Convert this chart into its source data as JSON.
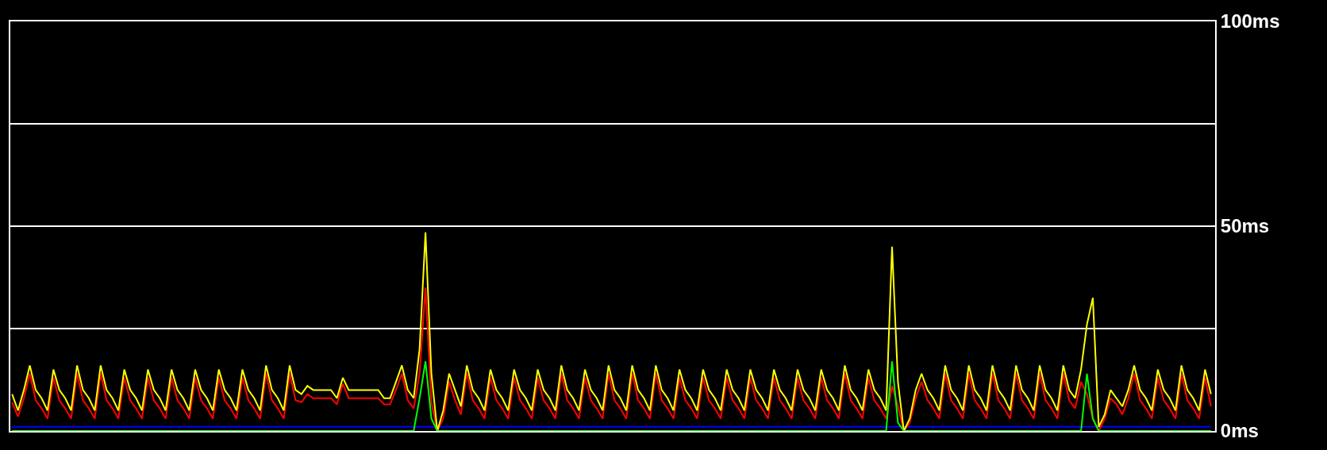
{
  "chart_data": {
    "type": "line",
    "categories": [
      null,
      null,
      null,
      null,
      null,
      null,
      null,
      null,
      null,
      null,
      null,
      null,
      null,
      null,
      null,
      null,
      null,
      null,
      null,
      null,
      null,
      null,
      null,
      null,
      null,
      null,
      null,
      null,
      null,
      null,
      null,
      null,
      null,
      null,
      null,
      null,
      null,
      null,
      null,
      null,
      null,
      null,
      null,
      null,
      null,
      null,
      null,
      null,
      null,
      null,
      null,
      null,
      null,
      null,
      null,
      null,
      null,
      null,
      null,
      null,
      null,
      null,
      null,
      null,
      null,
      null,
      null,
      null,
      null,
      null,
      null,
      null,
      null,
      null,
      null,
      null,
      null,
      null,
      null,
      null,
      null,
      null,
      null,
      null,
      null,
      null,
      null,
      null,
      null,
      null,
      null,
      null,
      null,
      null,
      null,
      null,
      null,
      null,
      null,
      null,
      null,
      null,
      null,
      null,
      null,
      null,
      null,
      null,
      null,
      null,
      null,
      null,
      null,
      null,
      null,
      null,
      null,
      null,
      null,
      null,
      null,
      null,
      null,
      null,
      null,
      null,
      null,
      null,
      null,
      null,
      null,
      null,
      null,
      null,
      null,
      null,
      null,
      null,
      null,
      null,
      null,
      null,
      null,
      null,
      null,
      null,
      null,
      null,
      null,
      null,
      null,
      null,
      null,
      null,
      null,
      null,
      null,
      null,
      null,
      null,
      null,
      null,
      null,
      null,
      null,
      null,
      null,
      null,
      null,
      null,
      null,
      null,
      null,
      null,
      null,
      null,
      null,
      null,
      null,
      null,
      null,
      null,
      null,
      null,
      null,
      null,
      null,
      null,
      null,
      null,
      null,
      null,
      null,
      null,
      null,
      null,
      null,
      null,
      null,
      null,
      null,
      null,
      null,
      null
    ],
    "series": [
      {
        "color": "#0000ff",
        "values": [
          1,
          1,
          1,
          1,
          1,
          1,
          1,
          1,
          1,
          1,
          1,
          1,
          1,
          1,
          1,
          1,
          1,
          1,
          1,
          1,
          1,
          1,
          1,
          1,
          1,
          1,
          1,
          1,
          1,
          1,
          1,
          1,
          1,
          1,
          1,
          1,
          1,
          1,
          1,
          1,
          1,
          1,
          1,
          1,
          1,
          1,
          1,
          1,
          1,
          1,
          1,
          1,
          1,
          1,
          1,
          1,
          1,
          1,
          1,
          1,
          1,
          1,
          1,
          1,
          1,
          1,
          1,
          1,
          1,
          1,
          1,
          1,
          1,
          1,
          1,
          1,
          1,
          1,
          1,
          1,
          1,
          1,
          1,
          1,
          1,
          1,
          1,
          1,
          1,
          1,
          1,
          1,
          1,
          1,
          1,
          1,
          1,
          1,
          1,
          1,
          1,
          1,
          1,
          1,
          1,
          1,
          1,
          1,
          1,
          1,
          1,
          1,
          1,
          1,
          1,
          1,
          1,
          1,
          1,
          1,
          1,
          1,
          1,
          1,
          1,
          1,
          1,
          1,
          1,
          1,
          1,
          1,
          1,
          1,
          1,
          1,
          1,
          1,
          1,
          1,
          1,
          1,
          1,
          1,
          1,
          1,
          1,
          1,
          1,
          1,
          1,
          1,
          1,
          1,
          1,
          1,
          1,
          1,
          1,
          1,
          1,
          1,
          1,
          1,
          1,
          1,
          1,
          1,
          1,
          1,
          1,
          1,
          1,
          1,
          1,
          1,
          1,
          1,
          1,
          1,
          1,
          1,
          1,
          1,
          1,
          1,
          1,
          1,
          1,
          1,
          1,
          1,
          1,
          1,
          1,
          1,
          1,
          1,
          1,
          1,
          1,
          1,
          1,
          1
        ]
      },
      {
        "color": "#ff0000",
        "values": [
          7,
          3.5,
          8,
          14,
          7.5,
          5.5,
          3,
          13,
          7.5,
          5.5,
          3,
          14,
          7.5,
          5.5,
          3,
          14,
          7.5,
          5.5,
          3,
          13,
          7.5,
          5.5,
          3,
          13,
          7.5,
          5.5,
          3,
          13,
          7.5,
          5.5,
          3,
          13,
          7.5,
          5.5,
          3,
          13,
          7.5,
          5.5,
          3,
          13,
          7.5,
          5.5,
          3,
          14,
          7.5,
          5.5,
          3,
          14,
          7.5,
          7,
          9,
          8,
          8,
          8,
          8,
          6.5,
          11.5,
          8,
          8,
          8,
          8,
          8,
          8,
          6.5,
          6.5,
          10,
          14,
          7.5,
          5.5,
          14,
          35,
          7,
          0,
          3,
          12,
          7.5,
          4,
          14,
          7.5,
          5.5,
          3,
          13,
          7.5,
          5.5,
          3,
          13,
          7.5,
          5.5,
          3,
          13,
          7.5,
          5.5,
          3,
          14,
          7.5,
          5.5,
          3,
          13,
          7.5,
          5.5,
          3,
          14,
          7.5,
          5.5,
          3,
          14,
          7.5,
          5.5,
          3,
          14,
          7.5,
          5.5,
          3,
          13,
          7.5,
          5.5,
          3,
          13,
          7.5,
          5.5,
          3,
          13,
          7.5,
          5.5,
          3,
          13,
          7.5,
          5.5,
          3,
          13,
          7.5,
          5.5,
          3,
          13,
          7.5,
          5.5,
          3,
          13,
          7.5,
          5.5,
          3,
          14,
          7.5,
          5.5,
          3,
          13,
          7.5,
          5.5,
          3,
          11,
          6,
          0,
          2,
          8,
          12,
          7.5,
          5.5,
          3,
          14,
          7.5,
          5.5,
          3,
          14,
          7.5,
          5.5,
          3,
          14,
          7.5,
          5.5,
          3,
          14,
          7.5,
          5.5,
          3,
          14,
          7.5,
          5.5,
          3,
          14,
          7.5,
          5.5,
          12,
          9,
          3,
          0,
          3,
          8,
          6.5,
          4,
          8,
          14,
          7.5,
          5.5,
          3,
          13,
          7.5,
          5.5,
          3,
          14,
          7.5,
          5.5,
          3,
          13,
          6
        ]
      },
      {
        "color": "#ffff00",
        "values": [
          9,
          5,
          10,
          16,
          10,
          8,
          5,
          15,
          10,
          8,
          5,
          16,
          10,
          8,
          5,
          16,
          10,
          8,
          5,
          15,
          10,
          8,
          5,
          15,
          10,
          8,
          5,
          15,
          10,
          8,
          5,
          15,
          10,
          8,
          5,
          15,
          10,
          8,
          5,
          15,
          10,
          8,
          5,
          16,
          10,
          8,
          5,
          16,
          10,
          9,
          11,
          10,
          10,
          10,
          10,
          8,
          13,
          10,
          10,
          10,
          10,
          10,
          10,
          8,
          8,
          12,
          16,
          10,
          8,
          20,
          48.5,
          14,
          0,
          5,
          14,
          10,
          6,
          16,
          10,
          8,
          5,
          15,
          10,
          8,
          5,
          15,
          10,
          8,
          5,
          15,
          10,
          8,
          5,
          16,
          10,
          8,
          5,
          15,
          10,
          8,
          5,
          16,
          10,
          8,
          5,
          16,
          10,
          8,
          5,
          16,
          10,
          8,
          5,
          15,
          10,
          8,
          5,
          15,
          10,
          8,
          5,
          15,
          10,
          8,
          5,
          15,
          10,
          8,
          5,
          15,
          10,
          8,
          5,
          15,
          10,
          8,
          5,
          15,
          10,
          8,
          5,
          16,
          10,
          8,
          5,
          15,
          10,
          8,
          5,
          45,
          12,
          0,
          3,
          10,
          14,
          10,
          8,
          5,
          16,
          10,
          8,
          5,
          16,
          10,
          8,
          5,
          16,
          10,
          8,
          5,
          16,
          10,
          8,
          5,
          16,
          10,
          8,
          5,
          16,
          10,
          8,
          15,
          26,
          32.5,
          1,
          4,
          10,
          8,
          6,
          10,
          16,
          10,
          8,
          5,
          15,
          10,
          8,
          5,
          16,
          10,
          8,
          5,
          15,
          9
        ]
      },
      {
        "color": "#00ff00",
        "values": [
          0,
          0,
          0,
          0,
          0,
          0,
          0,
          0,
          0,
          0,
          0,
          0,
          0,
          0,
          0,
          0,
          0,
          0,
          0,
          0,
          0,
          0,
          0,
          0,
          0,
          0,
          0,
          0,
          0,
          0,
          0,
          0,
          0,
          0,
          0,
          0,
          0,
          0,
          0,
          0,
          0,
          0,
          0,
          0,
          0,
          0,
          0,
          0,
          0,
          0,
          0,
          0,
          0,
          0,
          0,
          0,
          0,
          0,
          0,
          0,
          0,
          0,
          0,
          0,
          0,
          0,
          0,
          0,
          0,
          8,
          17,
          3,
          0,
          0,
          0,
          0,
          0,
          0,
          0,
          0,
          0,
          0,
          0,
          0,
          0,
          0,
          0,
          0,
          0,
          0,
          0,
          0,
          0,
          0,
          0,
          0,
          0,
          0,
          0,
          0,
          0,
          0,
          0,
          0,
          0,
          0,
          0,
          0,
          0,
          0,
          0,
          0,
          0,
          0,
          0,
          0,
          0,
          0,
          0,
          0,
          0,
          0,
          0,
          0,
          0,
          0,
          0,
          0,
          0,
          0,
          0,
          0,
          0,
          0,
          0,
          0,
          0,
          0,
          0,
          0,
          0,
          0,
          0,
          0,
          0,
          0,
          0,
          0,
          0,
          17,
          2,
          0,
          0,
          0,
          0,
          0,
          0,
          0,
          0,
          0,
          0,
          0,
          0,
          0,
          0,
          0,
          0,
          0,
          0,
          0,
          0,
          0,
          0,
          0,
          0,
          0,
          0,
          0,
          0,
          0,
          0,
          0,
          14,
          3,
          0,
          0,
          0,
          0,
          0,
          0,
          0,
          0,
          0,
          0,
          0,
          0,
          0,
          0,
          0,
          0,
          0,
          0,
          0,
          0
        ]
      }
    ],
    "ylim": [
      0,
      100
    ],
    "yticks": [
      {
        "value": 0,
        "label": "0ms"
      },
      {
        "value": 25,
        "label": null
      },
      {
        "value": 50,
        "label": "50ms"
      },
      {
        "value": 75,
        "label": null
      },
      {
        "value": 100,
        "label": "100ms"
      }
    ],
    "grid": "y",
    "tick_labels": "y",
    "marker": "none",
    "line_style": "solid"
  }
}
